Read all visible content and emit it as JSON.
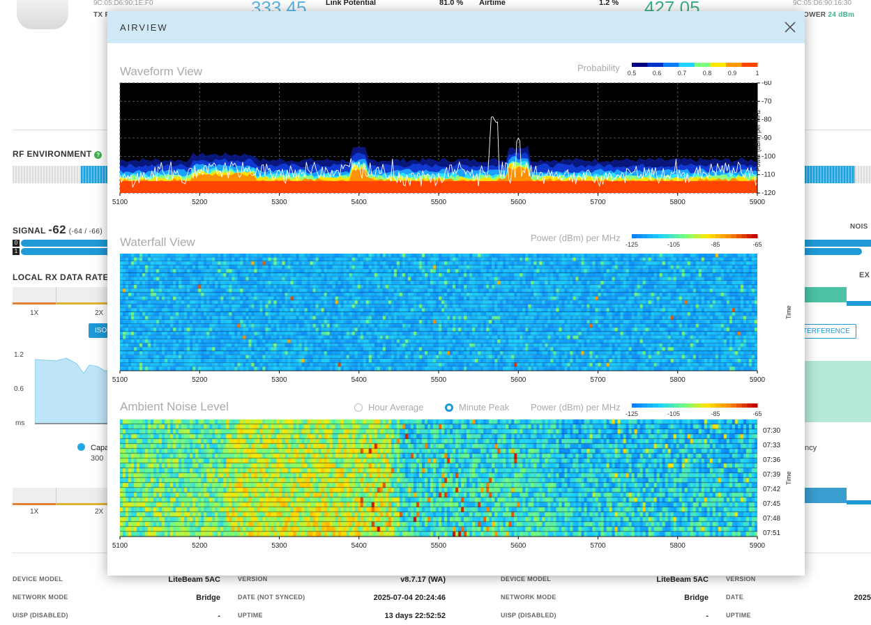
{
  "background": {
    "left_mac": "9C:05:D6:90:1E:F0",
    "right_mac": "9C:05:D6:90:16:30",
    "tx_label": "TX P",
    "power_label": "OWER",
    "power_value": "24 dBm",
    "left_big": "333.45",
    "right_big": "427.05",
    "link_potential_label": "Link Potential",
    "link_potential_value": "81.0 %",
    "airtime_label": "Airtime",
    "airtime_value": "1.2 %",
    "rf_environment": "RF ENVIRONMENT",
    "signal_label": "SIGNAL",
    "signal_value": "-62",
    "signal_chains": "(-64 / -66)",
    "noise_label": "NOIS",
    "chain0": "0",
    "chain1": "1",
    "local_rx_label": "LOCAL RX DATA RATE",
    "ext_label": "EX",
    "rate_1x": "1X",
    "rate_2x": "2X",
    "iso_button": "ISO",
    "interference_button": "TERFERENCE",
    "y_12": "1.2",
    "y_06": "0.6",
    "y_ms": "ms",
    "legend_capa": "Capa",
    "legend_300": "300",
    "legend_ncy": "ncy",
    "info_left": [
      {
        "label": "DEVICE MODEL",
        "value": "LiteBeam 5AC"
      },
      {
        "label": "NETWORK MODE",
        "value": "Bridge"
      },
      {
        "label": "UISP (DISABLED)",
        "value": "-"
      }
    ],
    "info_mid": [
      {
        "label": "VERSION",
        "value": "v8.7.17 (WA)"
      },
      {
        "label": "DATE (NOT SYNCED)",
        "value": "2025-07-04 20:24:46"
      },
      {
        "label": "UPTIME",
        "value": "13 days 22:52:52"
      }
    ],
    "info_right": [
      {
        "label": "DEVICE MODEL",
        "value": "LiteBeam 5AC"
      },
      {
        "label": "NETWORK MODE",
        "value": "Bridge"
      },
      {
        "label": "UISP (DISABLED)",
        "value": "-"
      }
    ],
    "info_far": [
      {
        "label": "VERSION",
        "value": ""
      },
      {
        "label": "DATE",
        "value": "2025"
      },
      {
        "label": "UPTIME",
        "value": ""
      }
    ]
  },
  "modal": {
    "title": "AIRVIEW",
    "close_icon": "close-icon",
    "x_ticks": [
      "5100",
      "5200",
      "5300",
      "5400",
      "5500",
      "5600",
      "5700",
      "5800",
      "5900"
    ],
    "waveform": {
      "title": "Waveform View",
      "legend_title": "Probability",
      "legend_ticks": [
        "0.5",
        "0.6",
        "0.7",
        "0.8",
        "0.9",
        "1"
      ],
      "legend_colors": [
        "#000080",
        "#0033cc",
        "#0a7cff",
        "#1ed3ff",
        "#7dff7d",
        "#ffe600",
        "#ff9900",
        "#ff4500"
      ],
      "y_ticks": [
        "-60",
        "-70",
        "-80",
        "-90",
        "-100",
        "-110",
        "-120"
      ],
      "y_label": "Power (dBm) per MHz"
    },
    "waterfall": {
      "title": "Waterfall View",
      "legend_title": "Power (dBm) per MHz",
      "legend_ticks": [
        "-125",
        "-105",
        "-85",
        "-65"
      ],
      "y_label": "Time"
    },
    "ambient": {
      "title": "Ambient Noise Level",
      "radio_hour": "Hour Average",
      "radio_minute": "Minute Peak",
      "selected": "Minute Peak",
      "legend_title": "Power (dBm) per MHz",
      "legend_ticks": [
        "-125",
        "-105",
        "-85",
        "-65"
      ],
      "time_ticks": [
        "07:30",
        "07:33",
        "07:36",
        "07:39",
        "07:42",
        "07:45",
        "07:48",
        "07:51"
      ],
      "y_label": "Time"
    }
  },
  "chart_data": [
    {
      "type": "line",
      "title": "Waveform View",
      "xlabel": "",
      "ylabel": "Power (dBm) per MHz",
      "xlim": [
        5100,
        5900
      ],
      "ylim": [
        -120,
        -60
      ],
      "grid": true,
      "series": [
        {
          "x": [
            5100,
            5150,
            5200,
            5225,
            5250,
            5300,
            5350,
            5400,
            5450,
            5500,
            5525,
            5550,
            5565,
            5570,
            5575,
            5590,
            5600,
            5625,
            5650,
            5700,
            5750,
            5800,
            5850,
            5880,
            5900
          ],
          "values": [
            -112,
            -108,
            -110,
            -100,
            -99,
            -110,
            -104,
            -101,
            -110,
            -111,
            -103,
            -111,
            -82,
            -84,
            -88,
            -110,
            -93,
            -110,
            -108,
            -111,
            -108,
            -110,
            -106,
            -102,
            -112
          ]
        }
      ]
    },
    {
      "type": "heatmap",
      "title": "Waterfall View",
      "xlim": [
        5100,
        5900
      ],
      "ylabel": "Time",
      "zlim": [
        -125,
        -65
      ]
    },
    {
      "type": "heatmap",
      "title": "Ambient Noise Level",
      "xlim": [
        5100,
        5900
      ],
      "y": [
        "07:30",
        "07:33",
        "07:36",
        "07:39",
        "07:42",
        "07:45",
        "07:48",
        "07:51"
      ],
      "ylabel": "Time",
      "zlim": [
        -125,
        -65
      ]
    }
  ]
}
